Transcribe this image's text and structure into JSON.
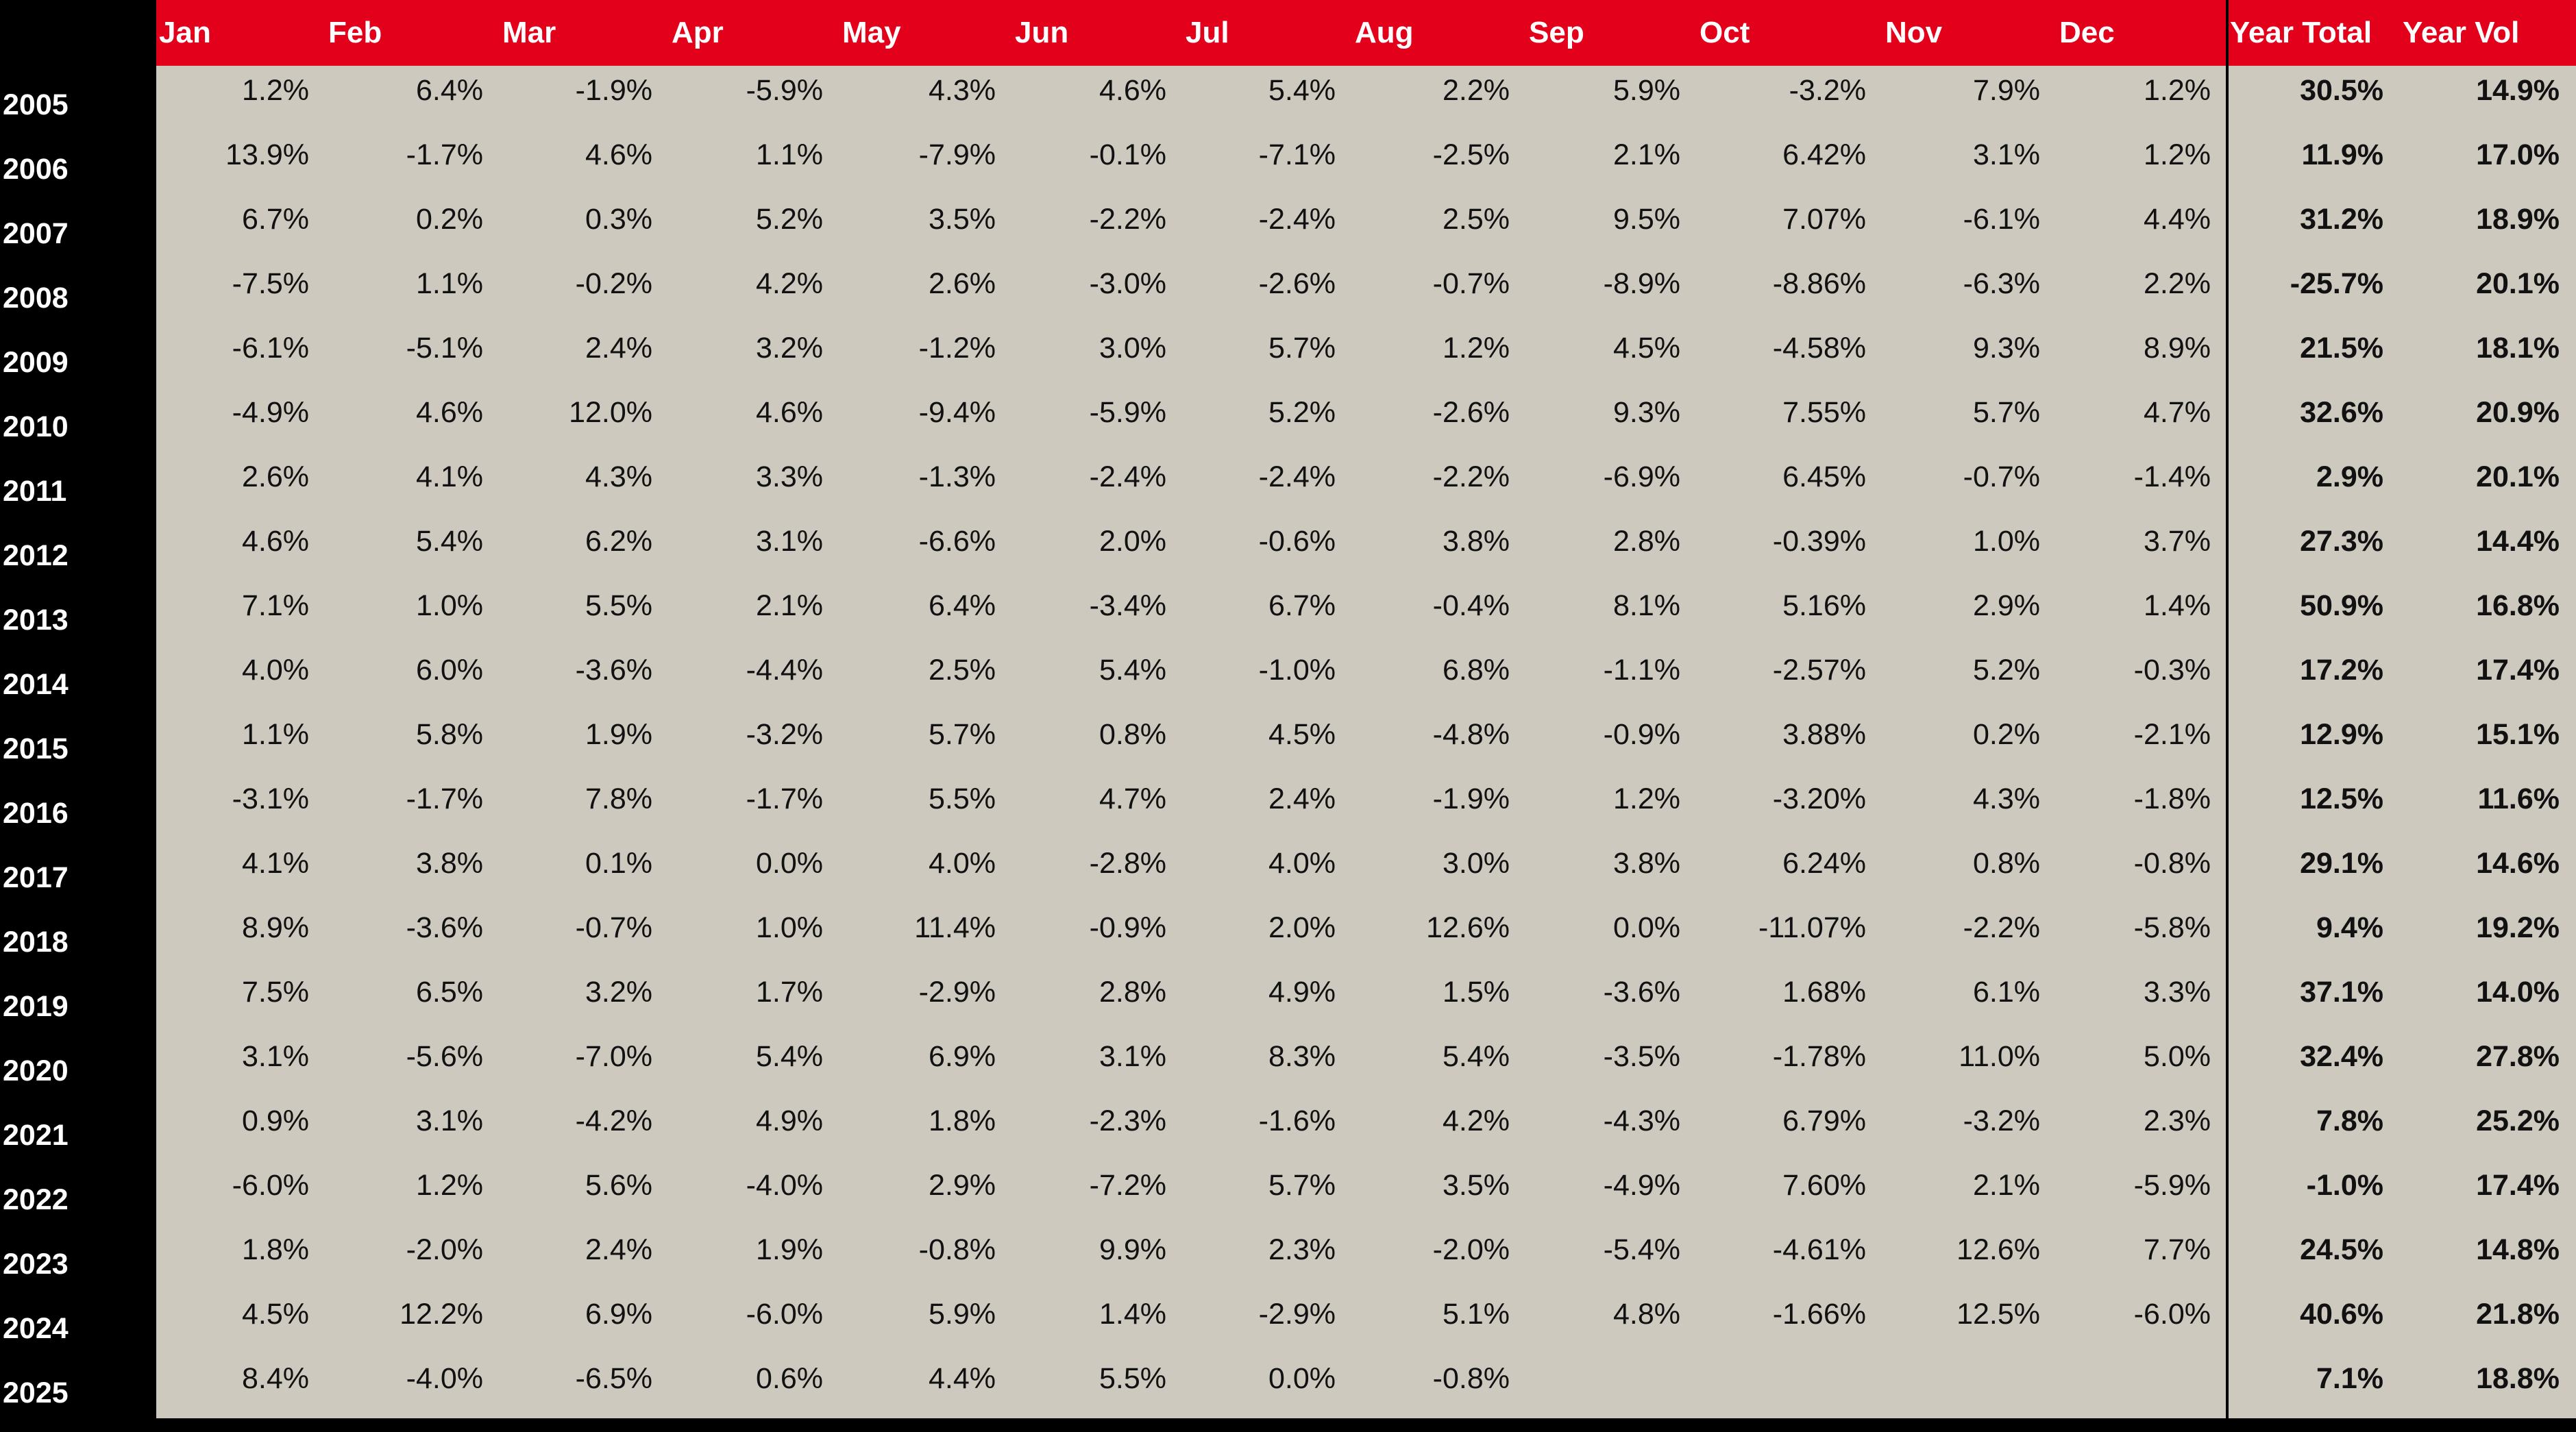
{
  "header": {
    "columns": [
      "Jan",
      "Feb",
      "Mar",
      "Apr",
      "May",
      "Jun",
      "Jul",
      "Aug",
      "Sep",
      "Oct",
      "Nov",
      "Dec",
      "Year Total",
      "Year Vol"
    ]
  },
  "table": {
    "rows": [
      [
        "2005",
        "1.2%",
        "6.4%",
        "-1.9%",
        "-5.9%",
        "4.3%",
        "4.6%",
        "5.4%",
        "2.2%",
        "5.9%",
        "-3.2%",
        "7.9%",
        "1.2%",
        "30.5%",
        "14.9%"
      ],
      [
        "2006",
        "13.9%",
        "-1.7%",
        "4.6%",
        "1.1%",
        "-7.9%",
        "-0.1%",
        "-7.1%",
        "-2.5%",
        "2.1%",
        "6.42%",
        "3.1%",
        "1.2%",
        "11.9%",
        "17.0%"
      ],
      [
        "2007",
        "6.7%",
        "0.2%",
        "0.3%",
        "5.2%",
        "3.5%",
        "-2.2%",
        "-2.4%",
        "2.5%",
        "9.5%",
        "7.07%",
        "-6.1%",
        "4.4%",
        "31.2%",
        "18.9%"
      ],
      [
        "2008",
        "-7.5%",
        "1.1%",
        "-0.2%",
        "4.2%",
        "2.6%",
        "-3.0%",
        "-2.6%",
        "-0.7%",
        "-8.9%",
        "-8.86%",
        "-6.3%",
        "2.2%",
        "-25.7%",
        "20.1%"
      ],
      [
        "2009",
        "-6.1%",
        "-5.1%",
        "2.4%",
        "3.2%",
        "-1.2%",
        "3.0%",
        "5.7%",
        "1.2%",
        "4.5%",
        "-4.58%",
        "9.3%",
        "8.9%",
        "21.5%",
        "18.1%"
      ],
      [
        "2010",
        "-4.9%",
        "4.6%",
        "12.0%",
        "4.6%",
        "-9.4%",
        "-5.9%",
        "5.2%",
        "-2.6%",
        "9.3%",
        "7.55%",
        "5.7%",
        "4.7%",
        "32.6%",
        "20.9%"
      ],
      [
        "2011",
        "2.6%",
        "4.1%",
        "4.3%",
        "3.3%",
        "-1.3%",
        "-2.4%",
        "-2.4%",
        "-2.2%",
        "-6.9%",
        "6.45%",
        "-0.7%",
        "-1.4%",
        "2.9%",
        "20.1%"
      ],
      [
        "2012",
        "4.6%",
        "5.4%",
        "6.2%",
        "3.1%",
        "-6.6%",
        "2.0%",
        "-0.6%",
        "3.8%",
        "2.8%",
        "-0.39%",
        "1.0%",
        "3.7%",
        "27.3%",
        "14.4%"
      ],
      [
        "2013",
        "7.1%",
        "1.0%",
        "5.5%",
        "2.1%",
        "6.4%",
        "-3.4%",
        "6.7%",
        "-0.4%",
        "8.1%",
        "5.16%",
        "2.9%",
        "1.4%",
        "50.9%",
        "16.8%"
      ],
      [
        "2014",
        "4.0%",
        "6.0%",
        "-3.6%",
        "-4.4%",
        "2.5%",
        "5.4%",
        "-1.0%",
        "6.8%",
        "-1.1%",
        "-2.57%",
        "5.2%",
        "-0.3%",
        "17.2%",
        "17.4%"
      ],
      [
        "2015",
        "1.1%",
        "5.8%",
        "1.9%",
        "-3.2%",
        "5.7%",
        "0.8%",
        "4.5%",
        "-4.8%",
        "-0.9%",
        "3.88%",
        "0.2%",
        "-2.1%",
        "12.9%",
        "15.1%"
      ],
      [
        "2016",
        "-3.1%",
        "-1.7%",
        "7.8%",
        "-1.7%",
        "5.5%",
        "4.7%",
        "2.4%",
        "-1.9%",
        "1.2%",
        "-3.20%",
        "4.3%",
        "-1.8%",
        "12.5%",
        "11.6%"
      ],
      [
        "2017",
        "4.1%",
        "3.8%",
        "0.1%",
        "0.0%",
        "4.0%",
        "-2.8%",
        "4.0%",
        "3.0%",
        "3.8%",
        "6.24%",
        "0.8%",
        "-0.8%",
        "29.1%",
        "14.6%"
      ],
      [
        "2018",
        "8.9%",
        "-3.6%",
        "-0.7%",
        "1.0%",
        "11.4%",
        "-0.9%",
        "2.0%",
        "12.6%",
        "0.0%",
        "-11.07%",
        "-2.2%",
        "-5.8%",
        "9.4%",
        "19.2%"
      ],
      [
        "2019",
        "7.5%",
        "6.5%",
        "3.2%",
        "1.7%",
        "-2.9%",
        "2.8%",
        "4.9%",
        "1.5%",
        "-3.6%",
        "1.68%",
        "6.1%",
        "3.3%",
        "37.1%",
        "14.0%"
      ],
      [
        "2020",
        "3.1%",
        "-5.6%",
        "-7.0%",
        "5.4%",
        "6.9%",
        "3.1%",
        "8.3%",
        "5.4%",
        "-3.5%",
        "-1.78%",
        "11.0%",
        "5.0%",
        "32.4%",
        "27.8%"
      ],
      [
        "2021",
        "0.9%",
        "3.1%",
        "-4.2%",
        "4.9%",
        "1.8%",
        "-2.3%",
        "-1.6%",
        "4.2%",
        "-4.3%",
        "6.79%",
        "-3.2%",
        "2.3%",
        "7.8%",
        "25.2%"
      ],
      [
        "2022",
        "-6.0%",
        "1.2%",
        "5.6%",
        "-4.0%",
        "2.9%",
        "-7.2%",
        "5.7%",
        "3.5%",
        "-4.9%",
        "7.60%",
        "2.1%",
        "-5.9%",
        "-1.0%",
        "17.4%"
      ],
      [
        "2023",
        "1.8%",
        "-2.0%",
        "2.4%",
        "1.9%",
        "-0.8%",
        "9.9%",
        "2.3%",
        "-2.0%",
        "-5.4%",
        "-4.61%",
        "12.6%",
        "7.7%",
        "24.5%",
        "14.8%"
      ],
      [
        "2024",
        "4.5%",
        "12.2%",
        "6.9%",
        "-6.0%",
        "5.9%",
        "1.4%",
        "-2.9%",
        "5.1%",
        "4.8%",
        "-1.66%",
        "12.5%",
        "-6.0%",
        "40.6%",
        "21.8%"
      ],
      [
        "2025",
        "8.4%",
        "-4.0%",
        "-6.5%",
        "0.6%",
        "4.4%",
        "5.5%",
        "0.0%",
        "-0.8%",
        null,
        null,
        null,
        null,
        "7.1%",
        "18.8%"
      ]
    ]
  }
}
